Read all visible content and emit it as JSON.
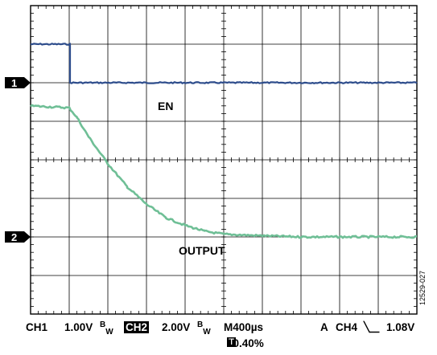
{
  "chart_data": {
    "type": "line",
    "title": "",
    "xlabel": "",
    "ylabel": "",
    "grid": true,
    "x_unit_per_div": "400µs",
    "x_divisions": 10,
    "y_divisions": 8,
    "xlim": [
      0,
      10
    ],
    "ylim": [
      -4,
      4
    ],
    "series": [
      {
        "name": "EN",
        "color": "#2e4d8c",
        "values": [
          [
            0,
            3.0
          ],
          [
            1.02,
            3.0
          ],
          [
            1.02,
            2.0
          ],
          [
            10,
            2.0
          ]
        ]
      },
      {
        "name": "OUTPUT",
        "color": "#6fbf96",
        "values": [
          [
            0,
            1.4
          ],
          [
            1.0,
            1.35
          ],
          [
            1.2,
            1.1
          ],
          [
            1.5,
            0.6
          ],
          [
            2.0,
            -0.1
          ],
          [
            2.5,
            -0.7
          ],
          [
            3.0,
            -1.15
          ],
          [
            3.5,
            -1.5
          ],
          [
            4.0,
            -1.7
          ],
          [
            4.5,
            -1.85
          ],
          [
            5.0,
            -1.93
          ],
          [
            6.0,
            -1.97
          ],
          [
            7.0,
            -2.0
          ],
          [
            8.0,
            -2.0
          ],
          [
            10,
            -2.0
          ]
        ]
      }
    ],
    "channel_markers": [
      {
        "label": "1",
        "level": 2.0
      },
      {
        "label": "2",
        "level": -2.0
      }
    ]
  },
  "footer": {
    "ch1": "CH1",
    "ch1_volts": "1.00V",
    "ch1_bw_b": "B",
    "ch1_bw_w": "W",
    "ch2": "CH2",
    "ch2_volts": "2.00V",
    "ch2_bw_b": "B",
    "ch2_bw_w": "W",
    "timebase": "M400µs",
    "trigger_mode": "A",
    "trigger_ch": "CH4",
    "trigger_edge": "╲⎽",
    "trigger_level": "1.08V",
    "t_marker": "T",
    "t_percent": "10.40%"
  },
  "figure_id": "12529-027"
}
